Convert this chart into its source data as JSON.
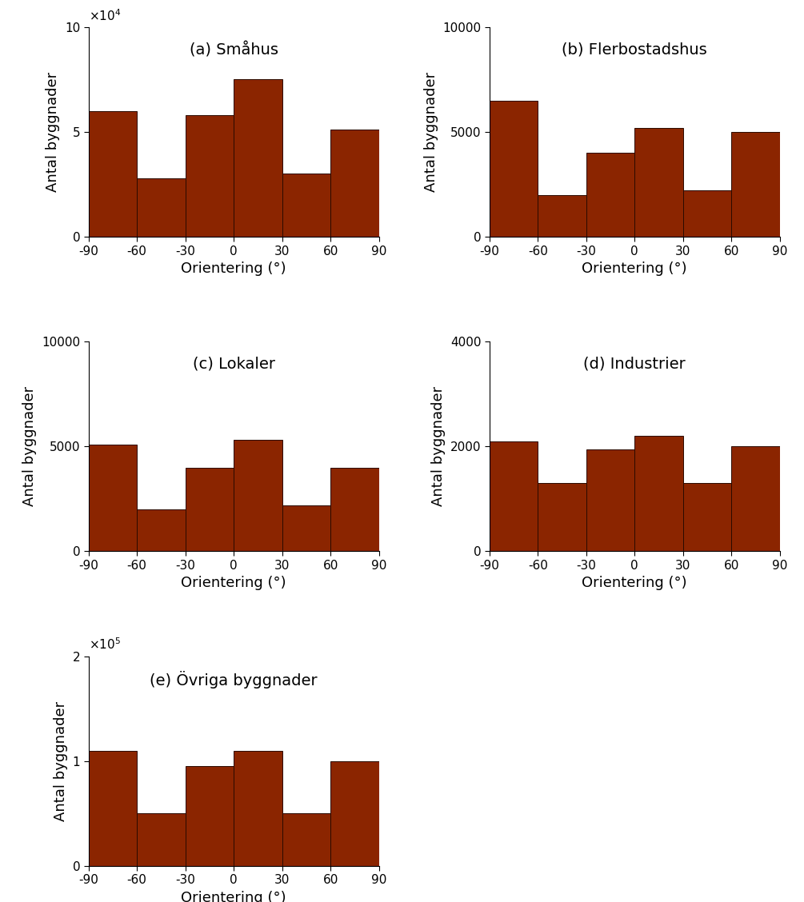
{
  "subplots": [
    {
      "label": "(a) Småhus",
      "values": [
        60000,
        28000,
        58000,
        75000,
        30000,
        51000
      ],
      "ylim": [
        0,
        100000
      ],
      "yticks": [
        0,
        50000,
        100000
      ],
      "yticklabels": [
        "0",
        "5",
        "10"
      ],
      "use_sci": true,
      "sci_exp": 4
    },
    {
      "label": "(b) Flerbostadshus",
      "values": [
        6500,
        2000,
        4000,
        5200,
        2200,
        5000
      ],
      "ylim": [
        0,
        10000
      ],
      "yticks": [
        0,
        5000,
        10000
      ],
      "yticklabels": [
        "0",
        "5000",
        "10000"
      ],
      "use_sci": false
    },
    {
      "label": "(c) Lokaler",
      "values": [
        5100,
        2000,
        4000,
        5300,
        2200,
        4000
      ],
      "ylim": [
        0,
        10000
      ],
      "yticks": [
        0,
        5000,
        10000
      ],
      "yticklabels": [
        "0",
        "5000",
        "10000"
      ],
      "use_sci": false
    },
    {
      "label": "(d) Industrier",
      "values": [
        2100,
        1300,
        1950,
        2200,
        1300,
        2000
      ],
      "ylim": [
        0,
        4000
      ],
      "yticks": [
        0,
        2000,
        4000
      ],
      "yticklabels": [
        "0",
        "2000",
        "4000"
      ],
      "use_sci": false
    },
    {
      "label": "(e) Övriga byggnader",
      "values": [
        110000,
        50000,
        95000,
        110000,
        50000,
        100000
      ],
      "ylim": [
        0,
        200000
      ],
      "yticks": [
        0,
        100000,
        200000
      ],
      "yticklabels": [
        "0",
        "1",
        "2"
      ],
      "use_sci": true,
      "sci_exp": 5
    }
  ],
  "bin_edges": [
    -90,
    -60,
    -30,
    0,
    30,
    60,
    90
  ],
  "xticks": [
    -90,
    -60,
    -30,
    0,
    30,
    60,
    90
  ],
  "xlabel": "Orientering (°)",
  "ylabel": "Antal byggnader",
  "bar_color": "#8B2500",
  "bar_edgecolor": "#2a0a00",
  "bar_linewidth": 0.7,
  "title_fontsize": 14,
  "label_fontsize": 13,
  "tick_fontsize": 11
}
